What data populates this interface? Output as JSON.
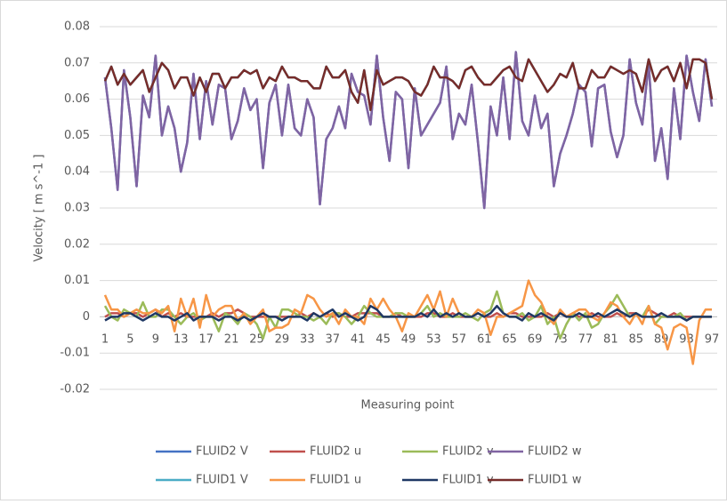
{
  "chart_data": {
    "type": "line",
    "y_label": "Velocity [ m s^-1 ]",
    "x_label": "Measuring point",
    "categories": [
      1,
      null,
      null,
      null,
      5,
      null,
      null,
      null,
      9,
      null,
      null,
      null,
      13,
      null,
      null,
      null,
      17,
      null,
      null,
      null,
      21,
      null,
      null,
      null,
      25,
      null,
      null,
      null,
      29,
      null,
      null,
      null,
      33,
      null,
      null,
      null,
      37,
      null,
      null,
      null,
      41,
      null,
      null,
      null,
      45,
      null,
      null,
      null,
      49,
      null,
      null,
      null,
      53,
      null,
      null,
      null,
      57,
      null,
      null,
      null,
      61,
      null,
      null,
      null,
      65,
      null,
      null,
      null,
      69,
      null,
      null,
      null,
      73,
      null,
      null,
      null,
      77,
      null,
      null,
      null,
      81,
      null,
      null,
      null,
      85,
      null,
      null,
      null,
      89,
      null,
      null,
      null,
      93,
      null,
      null,
      null,
      97
    ],
    "ylim": [
      -0.02,
      0.08
    ],
    "yticks": [
      -0.02,
      -0.01,
      0,
      0.01,
      0.02,
      0.03,
      0.04,
      0.05,
      0.06,
      0.07,
      0.08
    ],
    "grid": true,
    "legend": "bottom",
    "series": [
      {
        "name": "FLUID2 V",
        "color": "#4472c4",
        "values": [
          0.066,
          0.052,
          0.035,
          0.068,
          0.055,
          0.036,
          0.061,
          0.055,
          0.072,
          0.05,
          0.058,
          0.052,
          0.04,
          0.048,
          0.067,
          0.049,
          0.065,
          0.053,
          0.064,
          0.063,
          0.049,
          0.054,
          0.063,
          0.057,
          0.06,
          0.041,
          0.059,
          0.064,
          0.05,
          0.064,
          0.052,
          0.05,
          0.06,
          0.055,
          0.031,
          0.049,
          0.052,
          0.058,
          0.052,
          0.067,
          0.062,
          0.061,
          0.053,
          0.072,
          0.055,
          0.043,
          0.062,
          0.06,
          0.041,
          0.063,
          0.05,
          0.053,
          0.056,
          0.059,
          0.069,
          0.049,
          0.056,
          0.053,
          0.064,
          0.048,
          0.03,
          0.058,
          0.05,
          0.066,
          0.049,
          0.073,
          0.054,
          0.05,
          0.061,
          0.052,
          0.056,
          0.036,
          0.045,
          0.05,
          0.056,
          0.064,
          0.062,
          0.047,
          0.063,
          0.064,
          0.051,
          0.044,
          0.05,
          0.071,
          0.059,
          0.053,
          0.07,
          0.043,
          0.052,
          0.038,
          0.063,
          0.049,
          0.072,
          0.062,
          0.054,
          0.071,
          0.058
        ]
      },
      {
        "name": "FLUID2 u",
        "color": "#c0504d",
        "values": [
          0,
          0.001,
          0.001,
          0,
          0.001,
          0.001,
          0,
          0.001,
          0.002,
          0,
          0.001,
          0,
          0.001,
          0,
          0,
          0,
          0,
          0.001,
          0,
          0.001,
          0.001,
          0.002,
          0.001,
          0,
          0,
          0,
          0,
          0,
          0,
          0,
          0,
          0.001,
          0,
          0.001,
          0,
          0.001,
          0,
          0.001,
          0,
          0,
          0.001,
          0.001,
          0.001,
          0.001,
          0,
          0,
          0.001,
          0,
          0,
          0,
          0,
          0.001,
          0.001,
          0,
          0,
          0.001,
          0,
          0,
          0,
          0.001,
          0,
          0,
          0.001,
          0,
          0.001,
          0.001,
          0,
          0,
          0,
          0,
          0.001,
          0,
          0.001,
          0,
          0.001,
          0,
          0,
          0.001,
          0,
          0,
          0,
          0.001,
          0,
          0.001,
          0.001,
          0,
          0.002,
          0.001,
          0,
          0,
          0.001,
          0,
          0,
          0,
          0,
          0,
          0
        ]
      },
      {
        "name": "FLUID2 v",
        "color": "#9bbb59",
        "values": [
          0.003,
          0,
          -0.001,
          0.002,
          0.001,
          0,
          0.004,
          0,
          0,
          0.002,
          0.002,
          0,
          -0.002,
          0,
          0.001,
          -0.001,
          0,
          0,
          -0.004,
          0.001,
          0,
          -0.002,
          0.001,
          0,
          -0.002,
          -0.006,
          0,
          -0.003,
          0.002,
          0.002,
          0.001,
          0,
          0,
          -0.001,
          0,
          -0.002,
          0.001,
          0.001,
          0,
          -0.002,
          0,
          0.003,
          0.001,
          0,
          0,
          0,
          0.001,
          0.001,
          0,
          0,
          0.001,
          0.003,
          0,
          0.001,
          0,
          0,
          0,
          0.001,
          0,
          -0.001,
          0.001,
          0.002,
          0.007,
          0.001,
          0,
          0,
          0.001,
          -0.001,
          0,
          0.003,
          -0.002,
          0,
          -0.006,
          -0.002,
          0.001,
          -0.001,
          0.001,
          -0.003,
          -0.002,
          0.001,
          0.003,
          0.006,
          0.003,
          0,
          0.001,
          0,
          0.003,
          -0.002,
          0,
          0,
          0,
          0.001,
          -0.001,
          0,
          0,
          0,
          0
        ]
      },
      {
        "name": "FLUID2 w",
        "color": "#8064a2",
        "values": [
          0.066,
          0.052,
          0.035,
          0.068,
          0.055,
          0.036,
          0.061,
          0.055,
          0.072,
          0.05,
          0.058,
          0.052,
          0.04,
          0.048,
          0.067,
          0.049,
          0.065,
          0.053,
          0.064,
          0.063,
          0.049,
          0.054,
          0.063,
          0.057,
          0.06,
          0.041,
          0.059,
          0.064,
          0.05,
          0.064,
          0.052,
          0.05,
          0.06,
          0.055,
          0.031,
          0.049,
          0.052,
          0.058,
          0.052,
          0.067,
          0.062,
          0.061,
          0.053,
          0.072,
          0.055,
          0.043,
          0.062,
          0.06,
          0.041,
          0.063,
          0.05,
          0.053,
          0.056,
          0.059,
          0.069,
          0.049,
          0.056,
          0.053,
          0.064,
          0.048,
          0.03,
          0.058,
          0.05,
          0.066,
          0.049,
          0.073,
          0.054,
          0.05,
          0.061,
          0.052,
          0.056,
          0.036,
          0.045,
          0.05,
          0.056,
          0.064,
          0.062,
          0.047,
          0.063,
          0.064,
          0.051,
          0.044,
          0.05,
          0.071,
          0.059,
          0.053,
          0.07,
          0.043,
          0.052,
          0.038,
          0.063,
          0.049,
          0.072,
          0.062,
          0.054,
          0.071,
          0.058
        ]
      },
      {
        "name": "FLUID1 V",
        "color": "#4bacc6",
        "values": [
          0.065,
          0.069,
          0.064,
          0.067,
          0.064,
          0.066,
          0.068,
          0.062,
          0.066,
          0.07,
          0.068,
          0.063,
          0.066,
          0.066,
          0.061,
          0.066,
          0.062,
          0.067,
          0.067,
          0.063,
          0.066,
          0.066,
          0.068,
          0.067,
          0.068,
          0.063,
          0.066,
          0.065,
          0.069,
          0.066,
          0.066,
          0.065,
          0.065,
          0.063,
          0.063,
          0.069,
          0.066,
          0.066,
          0.068,
          0.062,
          0.059,
          0.068,
          0.057,
          0.068,
          0.064,
          0.065,
          0.066,
          0.066,
          0.065,
          0.062,
          0.061,
          0.064,
          0.069,
          0.066,
          0.066,
          0.065,
          0.063,
          0.068,
          0.069,
          0.066,
          0.064,
          0.064,
          0.066,
          0.068,
          0.069,
          0.066,
          0.065,
          0.071,
          0.068,
          0.065,
          0.062,
          0.064,
          0.067,
          0.066,
          0.07,
          0.063,
          0.063,
          0.068,
          0.066,
          0.066,
          0.069,
          0.068,
          0.067,
          0.068,
          0.067,
          0.062,
          0.071,
          0.065,
          0.068,
          0.069,
          0.065,
          0.07,
          0.063,
          0.071,
          0.071,
          0.07,
          0.06
        ]
      },
      {
        "name": "FLUID1 u",
        "color": "#f79646",
        "values": [
          0.006,
          0.002,
          0.002,
          0,
          0.001,
          0.002,
          0.001,
          0.001,
          0.002,
          0.001,
          0.003,
          -0.004,
          0.005,
          0,
          0.005,
          -0.003,
          0.006,
          0,
          0.002,
          0.003,
          0.003,
          -0.001,
          0.001,
          -0.002,
          0,
          0.002,
          -0.004,
          -0.003,
          -0.003,
          -0.002,
          0.002,
          0.001,
          0.006,
          0.005,
          0.002,
          0,
          0.001,
          -0.002,
          0.002,
          0,
          0,
          -0.002,
          0.005,
          0.002,
          0.005,
          0.002,
          0,
          -0.004,
          0.001,
          0,
          0.003,
          0.006,
          0.002,
          0.007,
          0,
          0.005,
          0.001,
          0,
          0,
          0.002,
          0.001,
          -0.005,
          0,
          0,
          0.001,
          0.002,
          0.003,
          0.01,
          0.006,
          0.004,
          0,
          -0.002,
          0.002,
          0,
          0.001,
          0.002,
          0.002,
          0,
          -0.001,
          0.001,
          0.004,
          0.003,
          0,
          -0.002,
          0.001,
          -0.002,
          0.003,
          -0.002,
          -0.003,
          -0.009,
          -0.003,
          -0.002,
          -0.003,
          -0.013,
          -0.001,
          0.002,
          0.002
        ]
      },
      {
        "name": "FLUID1 v",
        "color": "#1f3864",
        "values": [
          -0.001,
          0,
          0,
          0.001,
          0.001,
          0,
          -0.001,
          0,
          0.001,
          0,
          0,
          -0.001,
          0,
          0.001,
          -0.001,
          0,
          0,
          0,
          -0.001,
          0,
          0,
          -0.001,
          0,
          -0.001,
          0,
          0.001,
          0,
          0,
          -0.001,
          0,
          0,
          0,
          -0.001,
          0.001,
          0,
          0.001,
          0.002,
          0,
          0.001,
          0,
          -0.001,
          0,
          0.003,
          0.002,
          0,
          0,
          0,
          0,
          0,
          0,
          0.001,
          0,
          0.002,
          0,
          0.001,
          0,
          0.001,
          0,
          0,
          0.001,
          0,
          0.001,
          0.003,
          0.001,
          0,
          0,
          -0.001,
          0.001,
          0,
          0.001,
          0,
          -0.001,
          0.001,
          0,
          0,
          0.001,
          0,
          0,
          0.001,
          0,
          0.001,
          0.002,
          0.001,
          0,
          0.001,
          0,
          0,
          0,
          0.001,
          0,
          0,
          0,
          -0.001,
          0,
          0,
          0,
          0
        ]
      },
      {
        "name": "FLUID1 w",
        "color": "#772c2a",
        "values": [
          0.065,
          0.069,
          0.064,
          0.067,
          0.064,
          0.066,
          0.068,
          0.062,
          0.066,
          0.07,
          0.068,
          0.063,
          0.066,
          0.066,
          0.061,
          0.066,
          0.062,
          0.067,
          0.067,
          0.063,
          0.066,
          0.066,
          0.068,
          0.067,
          0.068,
          0.063,
          0.066,
          0.065,
          0.069,
          0.066,
          0.066,
          0.065,
          0.065,
          0.063,
          0.063,
          0.069,
          0.066,
          0.066,
          0.068,
          0.062,
          0.059,
          0.068,
          0.057,
          0.068,
          0.064,
          0.065,
          0.066,
          0.066,
          0.065,
          0.062,
          0.061,
          0.064,
          0.069,
          0.066,
          0.066,
          0.065,
          0.063,
          0.068,
          0.069,
          0.066,
          0.064,
          0.064,
          0.066,
          0.068,
          0.069,
          0.066,
          0.065,
          0.071,
          0.068,
          0.065,
          0.062,
          0.064,
          0.067,
          0.066,
          0.07,
          0.063,
          0.063,
          0.068,
          0.066,
          0.066,
          0.069,
          0.068,
          0.067,
          0.068,
          0.067,
          0.062,
          0.071,
          0.065,
          0.068,
          0.069,
          0.065,
          0.07,
          0.063,
          0.071,
          0.071,
          0.07,
          0.06
        ]
      }
    ]
  }
}
